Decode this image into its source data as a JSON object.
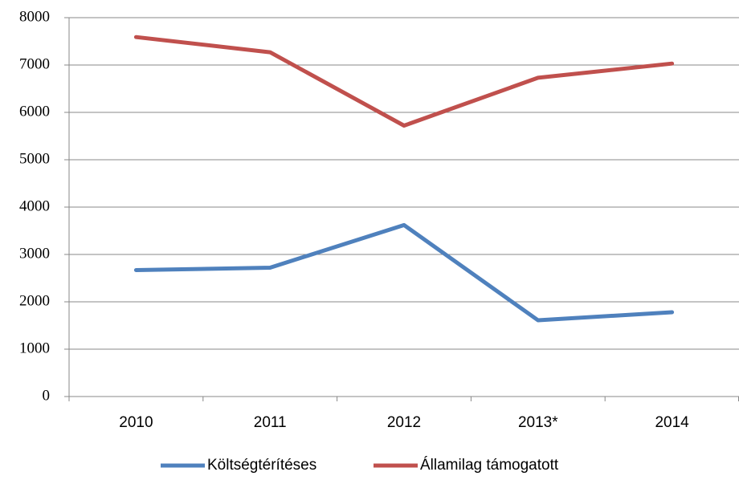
{
  "chart_data": {
    "type": "line",
    "categories": [
      "2010",
      "2011",
      "2012",
      "2013*",
      "2014"
    ],
    "series": [
      {
        "name": "Költségtérítéses",
        "color": "#4f81bd",
        "values": [
          2670,
          2720,
          3620,
          1610,
          1780
        ]
      },
      {
        "name": "Államilag támogatott",
        "color": "#c0504d",
        "values": [
          7590,
          7270,
          5720,
          6730,
          7030
        ]
      }
    ],
    "ylim": [
      0,
      8000
    ],
    "yticks": [
      0,
      1000,
      2000,
      3000,
      4000,
      5000,
      6000,
      7000,
      8000
    ],
    "grid": true,
    "legend": "bottom"
  }
}
